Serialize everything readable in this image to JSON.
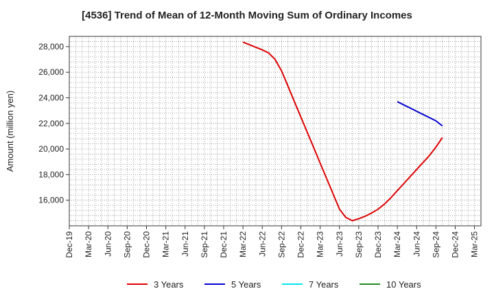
{
  "chart_data": {
    "type": "line",
    "title": "[4536]  Trend of Mean of 12-Month Moving Sum of Ordinary Incomes",
    "xlabel": "",
    "ylabel": "Amount (million yen)",
    "ylim": [
      14000,
      28800
    ],
    "yticks": [
      16000,
      18000,
      20000,
      22000,
      24000,
      26000,
      28000
    ],
    "ytick_labels": [
      "16,000",
      "18,000",
      "20,000",
      "22,000",
      "24,000",
      "26,000",
      "28,000"
    ],
    "x_range_months": [
      0,
      64
    ],
    "xtick_labels": [
      "Dec-19",
      "Mar-20",
      "Jun-20",
      "Sep-20",
      "Dec-20",
      "Mar-21",
      "Jun-21",
      "Sep-21",
      "Dec-21",
      "Mar-22",
      "Jun-22",
      "Sep-22",
      "Dec-22",
      "Mar-23",
      "Jun-23",
      "Sep-23",
      "Dec-23",
      "Mar-24",
      "Jun-24",
      "Sep-24",
      "Dec-24",
      "Mar-25"
    ],
    "grid": true,
    "legend_position": "bottom",
    "series": [
      {
        "name": "3 Years",
        "color": "#dd0000",
        "points": [
          [
            27,
            28350
          ],
          [
            28,
            28150
          ],
          [
            29,
            27950
          ],
          [
            30,
            27750
          ],
          [
            31,
            27500
          ],
          [
            32,
            27000
          ],
          [
            33,
            26100
          ],
          [
            34,
            24900
          ],
          [
            35,
            23700
          ],
          [
            36,
            22500
          ],
          [
            37,
            21300
          ],
          [
            38,
            20100
          ],
          [
            39,
            18900
          ],
          [
            40,
            17700
          ],
          [
            41,
            16500
          ],
          [
            42,
            15300
          ],
          [
            43,
            14650
          ],
          [
            44,
            14400
          ],
          [
            45,
            14550
          ],
          [
            46,
            14750
          ],
          [
            47,
            15000
          ],
          [
            48,
            15300
          ],
          [
            49,
            15700
          ],
          [
            50,
            16200
          ],
          [
            51,
            16750
          ],
          [
            52,
            17300
          ],
          [
            53,
            17850
          ],
          [
            54,
            18400
          ],
          [
            55,
            18950
          ],
          [
            56,
            19500
          ],
          [
            57,
            20150
          ],
          [
            58,
            20900
          ]
        ]
      },
      {
        "name": "5 Years",
        "color": "#0000cc",
        "points": [
          [
            51,
            23700
          ],
          [
            52,
            23450
          ],
          [
            53,
            23200
          ],
          [
            54,
            22950
          ],
          [
            55,
            22700
          ],
          [
            56,
            22450
          ],
          [
            57,
            22200
          ],
          [
            58,
            21800
          ]
        ]
      },
      {
        "name": "7 Years",
        "color": "#00e5ee",
        "points": []
      },
      {
        "name": "10 Years",
        "color": "#228822",
        "points": []
      }
    ]
  }
}
